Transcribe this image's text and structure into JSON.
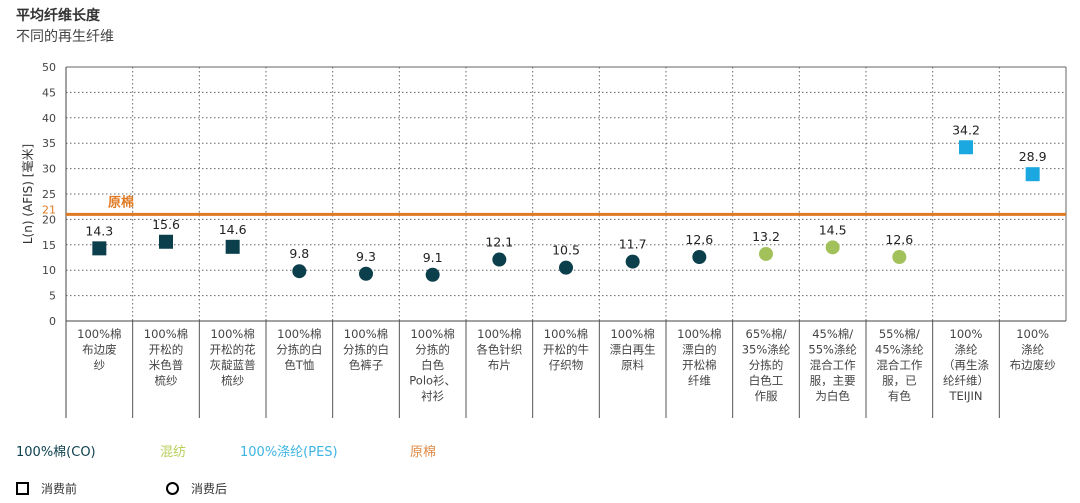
{
  "title": "平均纤维长度",
  "subtitle": "不同的再生纤维",
  "colors": {
    "cotton": "#0b3f4c",
    "blend": "#a3c15b",
    "pes": "#1ba8e0",
    "virgin": "#e07a22"
  },
  "legend": {
    "groups": [
      {
        "key": "cotton",
        "label": "100%棉(CO)"
      },
      {
        "key": "blend",
        "label": "混纺"
      },
      {
        "key": "pes",
        "label": "100%涤纶(PES)"
      },
      {
        "key": "virgin",
        "label": "原棉"
      }
    ],
    "markers": [
      {
        "shape": "square",
        "label": "消费前"
      },
      {
        "shape": "circle",
        "label": "消费后"
      }
    ]
  },
  "chart_data": {
    "type": "scatter",
    "title": "平均纤维长度",
    "subtitle": "不同的再生纤维",
    "ylabel": "L(n) (AFIS) [毫米]",
    "ylim": [
      0,
      50
    ],
    "yticks": [
      "0",
      "5",
      "10",
      "15",
      "20",
      "25",
      "30",
      "35",
      "40",
      "45",
      "50"
    ],
    "grid": true,
    "reference_line": {
      "value": 21,
      "tick_label": "21",
      "label": "原棉",
      "color": "#e07a22"
    },
    "categories": [
      {
        "lines": [
          "100%棉",
          "布边废",
          "纱"
        ],
        "value": 14.3,
        "label": "14.3",
        "group": "cotton",
        "shape": "square"
      },
      {
        "lines": [
          "100%棉",
          "开松的",
          "米色普",
          "梳纱"
        ],
        "value": 15.6,
        "label": "15.6",
        "group": "cotton",
        "shape": "square"
      },
      {
        "lines": [
          "100%棉",
          "开松的花",
          "灰靛蓝普",
          "梳纱"
        ],
        "value": 14.6,
        "label": "14.6",
        "group": "cotton",
        "shape": "square"
      },
      {
        "lines": [
          "100%棉",
          "分拣的白",
          "色T恤"
        ],
        "value": 9.8,
        "label": "9.8",
        "group": "cotton",
        "shape": "circle"
      },
      {
        "lines": [
          "100%棉",
          "分拣的白",
          "色裤子"
        ],
        "value": 9.3,
        "label": "9.3",
        "group": "cotton",
        "shape": "circle"
      },
      {
        "lines": [
          "100%棉",
          "分拣的",
          "白色",
          "Polo衫、",
          "衬衫"
        ],
        "value": 9.1,
        "label": "9.1",
        "group": "cotton",
        "shape": "circle"
      },
      {
        "lines": [
          "100%棉",
          "各色针织",
          "布片"
        ],
        "value": 12.1,
        "label": "12.1",
        "group": "cotton",
        "shape": "circle"
      },
      {
        "lines": [
          "100%棉",
          "开松的牛",
          "仔织物"
        ],
        "value": 10.5,
        "label": "10.5",
        "group": "cotton",
        "shape": "circle"
      },
      {
        "lines": [
          "100%棉",
          "漂白再生",
          "原料"
        ],
        "value": 11.7,
        "label": "11.7",
        "group": "cotton",
        "shape": "circle"
      },
      {
        "lines": [
          "100%棉",
          "漂白的",
          "开松棉",
          "纤维"
        ],
        "value": 12.6,
        "label": "12.6",
        "group": "cotton",
        "shape": "circle"
      },
      {
        "lines": [
          "65%棉/",
          "35%涤纶",
          "分拣的",
          "白色工",
          "作服"
        ],
        "value": 13.2,
        "label": "13.2",
        "group": "blend",
        "shape": "circle"
      },
      {
        "lines": [
          "45%棉/",
          "55%涤纶",
          "混合工作",
          "服，主要",
          "为白色"
        ],
        "value": 14.5,
        "label": "14.5",
        "group": "blend",
        "shape": "circle"
      },
      {
        "lines": [
          "55%棉/",
          "45%涤纶",
          "混合工作",
          "服，已",
          "有色"
        ],
        "value": 12.6,
        "label": "12.6",
        "group": "blend",
        "shape": "circle"
      },
      {
        "lines": [
          "100%",
          "涤纶",
          "（再生涤",
          "纶纤维）",
          "TEIJIN"
        ],
        "value": 34.2,
        "label": "34.2",
        "group": "pes",
        "shape": "square"
      },
      {
        "lines": [
          "100%",
          "涤纶",
          "布边废纱"
        ],
        "value": 28.9,
        "label": "28.9",
        "group": "pes",
        "shape": "square"
      }
    ]
  }
}
